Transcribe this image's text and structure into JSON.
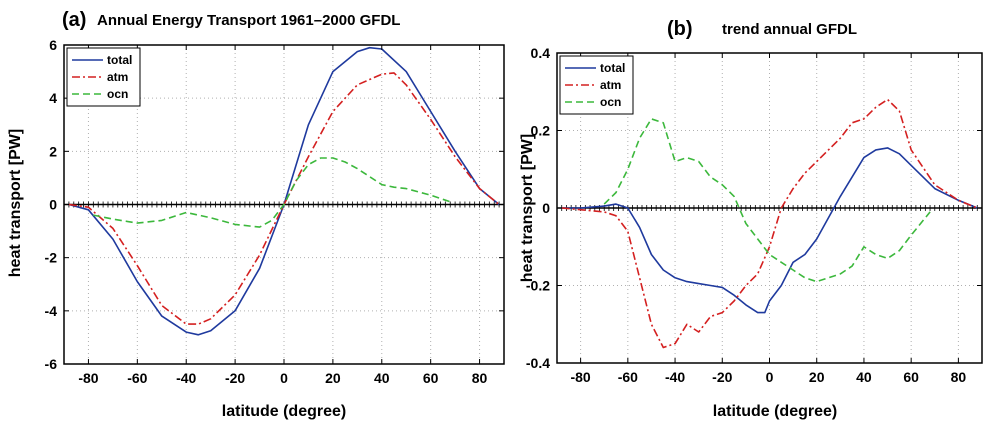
{
  "chart_data": [
    {
      "type": "line",
      "panel_label": "(a)",
      "title": "Annual Energy Transport 1961–2000 GFDL",
      "xlabel": "latitude (degree)",
      "ylabel": "heat transport [PW]",
      "xlim": [
        -90,
        90
      ],
      "ylim": [
        -6,
        6
      ],
      "xticks": [
        -80,
        -60,
        -40,
        -20,
        0,
        20,
        40,
        60,
        80
      ],
      "yticks": [
        -6,
        -4,
        -2,
        0,
        2,
        4,
        6
      ],
      "grid": true,
      "legend_position": "top-left",
      "series": [
        {
          "name": "total",
          "color": "#1f3a9e",
          "dash": "solid",
          "x": [
            -88,
            -80,
            -70,
            -60,
            -50,
            -40,
            -35,
            -30,
            -20,
            -10,
            0,
            10,
            20,
            30,
            35,
            40,
            50,
            60,
            70,
            80,
            88
          ],
          "y": [
            0,
            -0.2,
            -1.3,
            -2.9,
            -4.2,
            -4.8,
            -4.9,
            -4.75,
            -4.0,
            -2.4,
            0,
            3.0,
            5.0,
            5.75,
            5.9,
            5.85,
            5.0,
            3.5,
            2.0,
            0.6,
            0
          ]
        },
        {
          "name": "atm",
          "color": "#d42020",
          "dash": "dashdot",
          "x": [
            -88,
            -80,
            -70,
            -60,
            -50,
            -40,
            -35,
            -30,
            -20,
            -10,
            0,
            10,
            20,
            30,
            40,
            45,
            50,
            60,
            70,
            80,
            88
          ],
          "y": [
            0,
            -0.1,
            -0.9,
            -2.3,
            -3.8,
            -4.5,
            -4.5,
            -4.3,
            -3.4,
            -1.9,
            0,
            1.8,
            3.5,
            4.5,
            4.9,
            4.95,
            4.5,
            3.2,
            1.8,
            0.6,
            0
          ]
        },
        {
          "name": "ocn",
          "color": "#3cb83c",
          "dash": "dashed",
          "x": [
            -78,
            -70,
            -60,
            -50,
            -40,
            -35,
            -30,
            -20,
            -10,
            -5,
            0,
            5,
            10,
            15,
            20,
            25,
            30,
            40,
            45,
            50,
            60,
            68
          ],
          "y": [
            -0.4,
            -0.55,
            -0.7,
            -0.6,
            -0.3,
            -0.4,
            -0.5,
            -0.75,
            -0.85,
            -0.6,
            0,
            0.9,
            1.5,
            1.75,
            1.75,
            1.6,
            1.35,
            0.75,
            0.65,
            0.6,
            0.35,
            0.1
          ]
        }
      ]
    },
    {
      "type": "line",
      "panel_label": "(b)",
      "title": "trend annual GFDL",
      "xlabel": "latitude (degree)",
      "ylabel": "heat transport [PW]",
      "xlim": [
        -90,
        90
      ],
      "ylim": [
        -0.4,
        0.4
      ],
      "xticks": [
        -80,
        -60,
        -40,
        -20,
        0,
        20,
        40,
        60,
        80
      ],
      "yticks": [
        -0.4,
        -0.2,
        0,
        0.2,
        0.4
      ],
      "grid": true,
      "legend_position": "top-left",
      "series": [
        {
          "name": "total",
          "color": "#1f3a9e",
          "dash": "solid",
          "x": [
            -88,
            -80,
            -70,
            -65,
            -60,
            -55,
            -50,
            -45,
            -40,
            -35,
            -30,
            -25,
            -20,
            -15,
            -10,
            -5,
            -2,
            0,
            5,
            10,
            15,
            20,
            30,
            40,
            45,
            50,
            55,
            60,
            70,
            80,
            88
          ],
          "y": [
            0,
            0,
            0.005,
            0.01,
            0.0,
            -0.05,
            -0.12,
            -0.16,
            -0.18,
            -0.19,
            -0.195,
            -0.2,
            -0.205,
            -0.225,
            -0.25,
            -0.27,
            -0.27,
            -0.24,
            -0.2,
            -0.14,
            -0.12,
            -0.08,
            0.03,
            0.13,
            0.15,
            0.155,
            0.14,
            0.11,
            0.05,
            0.02,
            0
          ]
        },
        {
          "name": "atm",
          "color": "#d42020",
          "dash": "dashdot",
          "x": [
            -88,
            -70,
            -65,
            -60,
            -55,
            -50,
            -45,
            -40,
            -35,
            -30,
            -25,
            -20,
            -15,
            -10,
            -5,
            0,
            5,
            10,
            15,
            20,
            30,
            35,
            40,
            45,
            50,
            55,
            60,
            70,
            80,
            88
          ],
          "y": [
            0,
            -0.01,
            -0.02,
            -0.06,
            -0.18,
            -0.3,
            -0.36,
            -0.35,
            -0.3,
            -0.32,
            -0.28,
            -0.27,
            -0.24,
            -0.2,
            -0.17,
            -0.1,
            0.0,
            0.05,
            0.09,
            0.12,
            0.18,
            0.22,
            0.23,
            0.26,
            0.28,
            0.25,
            0.15,
            0.06,
            0.02,
            0
          ]
        },
        {
          "name": "ocn",
          "color": "#3cb83c",
          "dash": "dashed",
          "x": [
            -70,
            -65,
            -60,
            -55,
            -50,
            -45,
            -40,
            -35,
            -30,
            -25,
            -20,
            -15,
            -10,
            -5,
            0,
            5,
            10,
            15,
            20,
            25,
            30,
            35,
            40,
            45,
            50,
            55,
            60,
            68
          ],
          "y": [
            0.01,
            0.04,
            0.1,
            0.18,
            0.23,
            0.22,
            0.12,
            0.13,
            0.12,
            0.08,
            0.06,
            0.03,
            -0.04,
            -0.08,
            -0.12,
            -0.14,
            -0.16,
            -0.18,
            -0.19,
            -0.18,
            -0.17,
            -0.15,
            -0.1,
            -0.12,
            -0.13,
            -0.11,
            -0.07,
            -0.01
          ]
        }
      ]
    }
  ]
}
